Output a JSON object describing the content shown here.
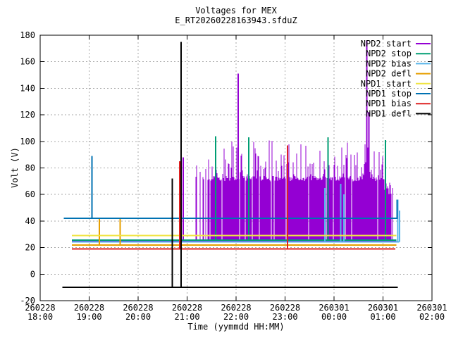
{
  "title": "Voltages for MEX",
  "subtitle": "E_RT20260228163943.sfduZ",
  "axes": {
    "ylabel": "Volt (V)",
    "xlabel": "Time (yymmdd HH:MM)",
    "y_ticks": [
      -20,
      0,
      20,
      40,
      60,
      80,
      100,
      120,
      140,
      160,
      180
    ],
    "x_ticks": [
      {
        "date": "260228",
        "time": "18:00",
        "t": 18
      },
      {
        "date": "260228",
        "time": "19:00",
        "t": 19
      },
      {
        "date": "260228",
        "time": "20:00",
        "t": 20
      },
      {
        "date": "260228",
        "time": "21:00",
        "t": 21
      },
      {
        "date": "260228",
        "time": "22:00",
        "t": 22
      },
      {
        "date": "260228",
        "time": "23:00",
        "t": 23
      },
      {
        "date": "260301",
        "time": "00:00",
        "t": 24
      },
      {
        "date": "260301",
        "time": "01:00",
        "t": 25
      },
      {
        "date": "260301",
        "time": "02:00",
        "t": 26
      }
    ]
  },
  "colors": {
    "grid": "#aaaaaa",
    "axis": "#000000"
  },
  "chart_data": {
    "type": "line",
    "title": "Voltages for MEX",
    "subtitle": "E_RT20260228163943.sfduZ",
    "xlabel": "Time (yymmdd HH:MM)",
    "ylabel": "Volt (V)",
    "ylim": [
      -20,
      180
    ],
    "xlim_hours": [
      18,
      26
    ],
    "x_unit": "hours since 260228 00:00",
    "grid": true,
    "legend_position": "top-right-inside",
    "series": [
      {
        "name": "NPD2 start",
        "color": "#9400d3",
        "baseline": 24.8,
        "t_start": 18.65,
        "t_end": 25.27,
        "spikes": [
          {
            "t": 20.92,
            "v": 88
          }
        ],
        "dense": {
          "t_start": 21.17,
          "t_end": 25.19,
          "v_bottom": 24.5,
          "v_top_typ": 72,
          "v_top_burst": 92,
          "v_top_max": 101,
          "tall_spikes": [
            {
              "t": 22.04,
              "v": 151
            },
            {
              "t": 24.67,
              "v": 176
            },
            {
              "t": 24.71,
              "v": 122
            }
          ]
        }
      },
      {
        "name": "NPD2 stop",
        "color": "#009e73",
        "baseline": 25.7,
        "t_start": 18.65,
        "t_end": 25.27,
        "spikes": [
          {
            "t": 21.58,
            "v": 104
          },
          {
            "t": 22.26,
            "v": 103
          },
          {
            "t": 23.88,
            "v": 103
          },
          {
            "t": 25.05,
            "v": 101
          }
        ]
      },
      {
        "name": "NPD2 bias",
        "color": "#56b4e9",
        "baseline": 24.3,
        "t_start": 18.65,
        "t_end": 25.33,
        "spikes": [
          {
            "t": 23.81,
            "v": 65
          },
          {
            "t": 24.14,
            "v": 68
          },
          {
            "t": 24.2,
            "v": 60
          },
          {
            "t": 25.3,
            "v": 56
          },
          {
            "t": 25.34,
            "v": 48
          }
        ]
      },
      {
        "name": "NPD2 defl",
        "color": "#e69f00",
        "baseline": 21.8,
        "t_start": 18.65,
        "t_end": 25.27,
        "spikes": [
          {
            "t": 19.21,
            "v": 42
          },
          {
            "t": 19.63,
            "v": 42
          }
        ]
      },
      {
        "name": "NPD1 start",
        "color": "#f0e442",
        "baseline": 29,
        "t_start": 18.65,
        "t_end": 25.27,
        "spikes": []
      },
      {
        "name": "NPD1 stop",
        "color": "#0072b2",
        "baseline": 42,
        "t_start": 18.48,
        "t_end": 25.3,
        "spikes": [
          {
            "t": 19.06,
            "v": 89
          },
          {
            "t": 25.29,
            "v": 56
          }
        ]
      },
      {
        "name": "NPD1 bias",
        "color": "#dd2222",
        "baseline": 19,
        "t_start": 18.65,
        "t_end": 25.25,
        "spikes": [
          {
            "t": 20.85,
            "v": 85
          },
          {
            "t": 23.05,
            "v": 97
          }
        ]
      },
      {
        "name": "NPD1 defl",
        "color": "#000000",
        "baseline": -10,
        "t_start": 18.45,
        "t_end": 25.3,
        "spikes": [
          {
            "t": 20.7,
            "v": 72
          },
          {
            "t": 20.88,
            "v": 175
          }
        ]
      }
    ]
  }
}
